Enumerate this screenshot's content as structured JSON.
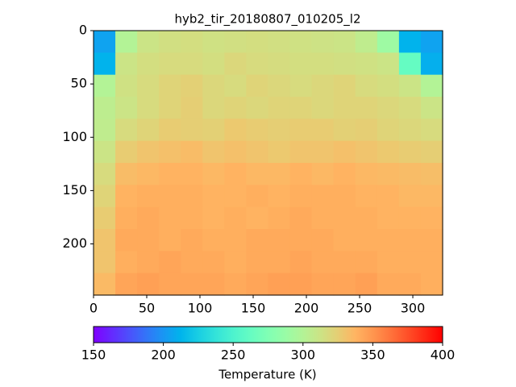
{
  "chart_data": {
    "type": "heatmap",
    "title": "hyb2_tir_20180807_010205_l2",
    "colormap": "rainbow",
    "xlim": [
      0,
      328
    ],
    "ylim": [
      248,
      0
    ],
    "xticks": [
      0,
      50,
      100,
      150,
      200,
      250,
      300
    ],
    "yticks": [
      0,
      50,
      100,
      150,
      200
    ],
    "z": [
      [
        205,
        300,
        312,
        315,
        316,
        314,
        315,
        316,
        315,
        314,
        313,
        312,
        306,
        290,
        212,
        205
      ],
      [
        212,
        312,
        316,
        318,
        318,
        316,
        320,
        318,
        317,
        316,
        316,
        315,
        314,
        312,
        262,
        210
      ],
      [
        300,
        314,
        318,
        322,
        324,
        320,
        318,
        322,
        320,
        318,
        320,
        322,
        318,
        316,
        312,
        300
      ],
      [
        305,
        312,
        318,
        322,
        325,
        320,
        322,
        320,
        322,
        322,
        320,
        322,
        322,
        320,
        318,
        312
      ],
      [
        306,
        318,
        322,
        326,
        325,
        324,
        328,
        326,
        325,
        326,
        326,
        324,
        325,
        322,
        320,
        318
      ],
      [
        312,
        326,
        330,
        332,
        334,
        330,
        332,
        330,
        328,
        330,
        330,
        332,
        330,
        328,
        326,
        325
      ],
      [
        318,
        334,
        336,
        338,
        338,
        336,
        338,
        336,
        336,
        338,
        336,
        338,
        336,
        335,
        334,
        333
      ],
      [
        322,
        338,
        340,
        340,
        340,
        338,
        338,
        340,
        338,
        340,
        340,
        340,
        338,
        338,
        336,
        336
      ],
      [
        326,
        340,
        342,
        340,
        340,
        338,
        340,
        338,
        340,
        342,
        340,
        340,
        340,
        338,
        338,
        338
      ],
      [
        330,
        342,
        342,
        340,
        342,
        340,
        340,
        342,
        342,
        342,
        342,
        340,
        340,
        340,
        340,
        340
      ],
      [
        330,
        340,
        342,
        344,
        342,
        342,
        340,
        342,
        342,
        344,
        342,
        342,
        342,
        340,
        340,
        340
      ],
      [
        335,
        344,
        346,
        344,
        344,
        344,
        342,
        344,
        346,
        346,
        344,
        344,
        346,
        342,
        342,
        340
      ]
    ],
    "colorbar": {
      "label": "Temperature (K)",
      "lim": [
        150,
        400
      ],
      "ticks": [
        150,
        200,
        250,
        300,
        350,
        400
      ]
    }
  }
}
